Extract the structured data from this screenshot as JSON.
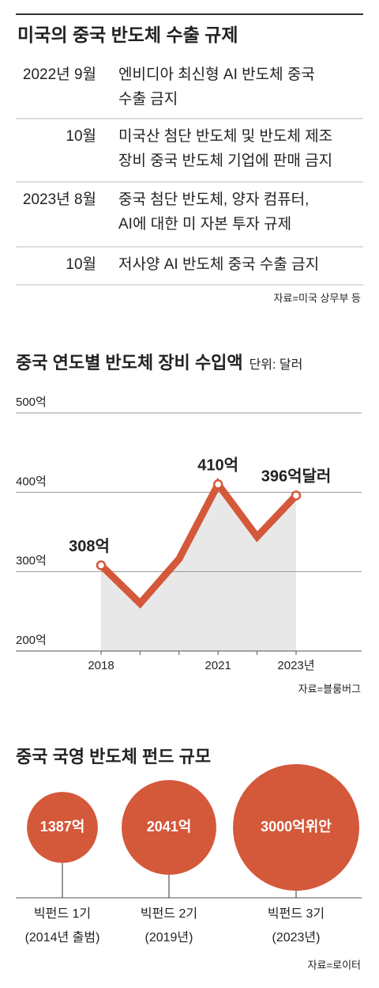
{
  "table": {
    "title": "미국의 중국 반도체 수출 규제",
    "rows": [
      {
        "date": "2022년 9월",
        "text": [
          "엔비디아 최신형 AI 반도체 중국",
          "수출 금지"
        ]
      },
      {
        "date": "10월",
        "text": [
          "미국산 첨단 반도체 및 반도체 제조",
          "장비 중국 반도체 기업에 판매 금지"
        ]
      },
      {
        "date": "2023년 8월",
        "text": [
          "중국 첨단 반도체, 양자 컴퓨터,",
          "AI에 대한 미 자본 투자 규제"
        ]
      },
      {
        "date": "10월",
        "text": [
          "저사양 AI 반도체 중국 수출 금지"
        ]
      }
    ],
    "source": "자료=미국 상무부 등"
  },
  "chart_data": [
    {
      "type": "line",
      "title": "중국 연도별 반도체 장비 수입액",
      "unit": "단위: 달러",
      "categories": [
        "2018",
        null,
        null,
        "2021",
        null,
        "2023년"
      ],
      "values": [
        308,
        260,
        316,
        410,
        344,
        396
      ],
      "value_labels": [
        "308억",
        null,
        null,
        "410억",
        null,
        "396억달러"
      ],
      "color": "#d4583a",
      "area_color": "#e8e8e8",
      "ylim": [
        200,
        500
      ],
      "yticks": [
        {
          "value": 200,
          "label": "200억"
        },
        {
          "value": 300,
          "label": "300억"
        },
        {
          "value": 400,
          "label": "400억"
        },
        {
          "value": 500,
          "label": "500억"
        }
      ],
      "grid": true,
      "source": "자료=블룸버그"
    },
    {
      "type": "bubble",
      "title": "중국 국영 반도체 펀드 규모",
      "categories": [
        "빅펀드 1기",
        "빅펀드 2기",
        "빅펀드 3기"
      ],
      "sublabels": [
        "(2014년 출범)",
        "(2019년)",
        "(2023년)"
      ],
      "values": [
        1387,
        2041,
        3000
      ],
      "value_labels": [
        "1387억",
        "2041억",
        "3000억위안"
      ],
      "color": "#d4583a",
      "source": "자료=로이터"
    }
  ]
}
